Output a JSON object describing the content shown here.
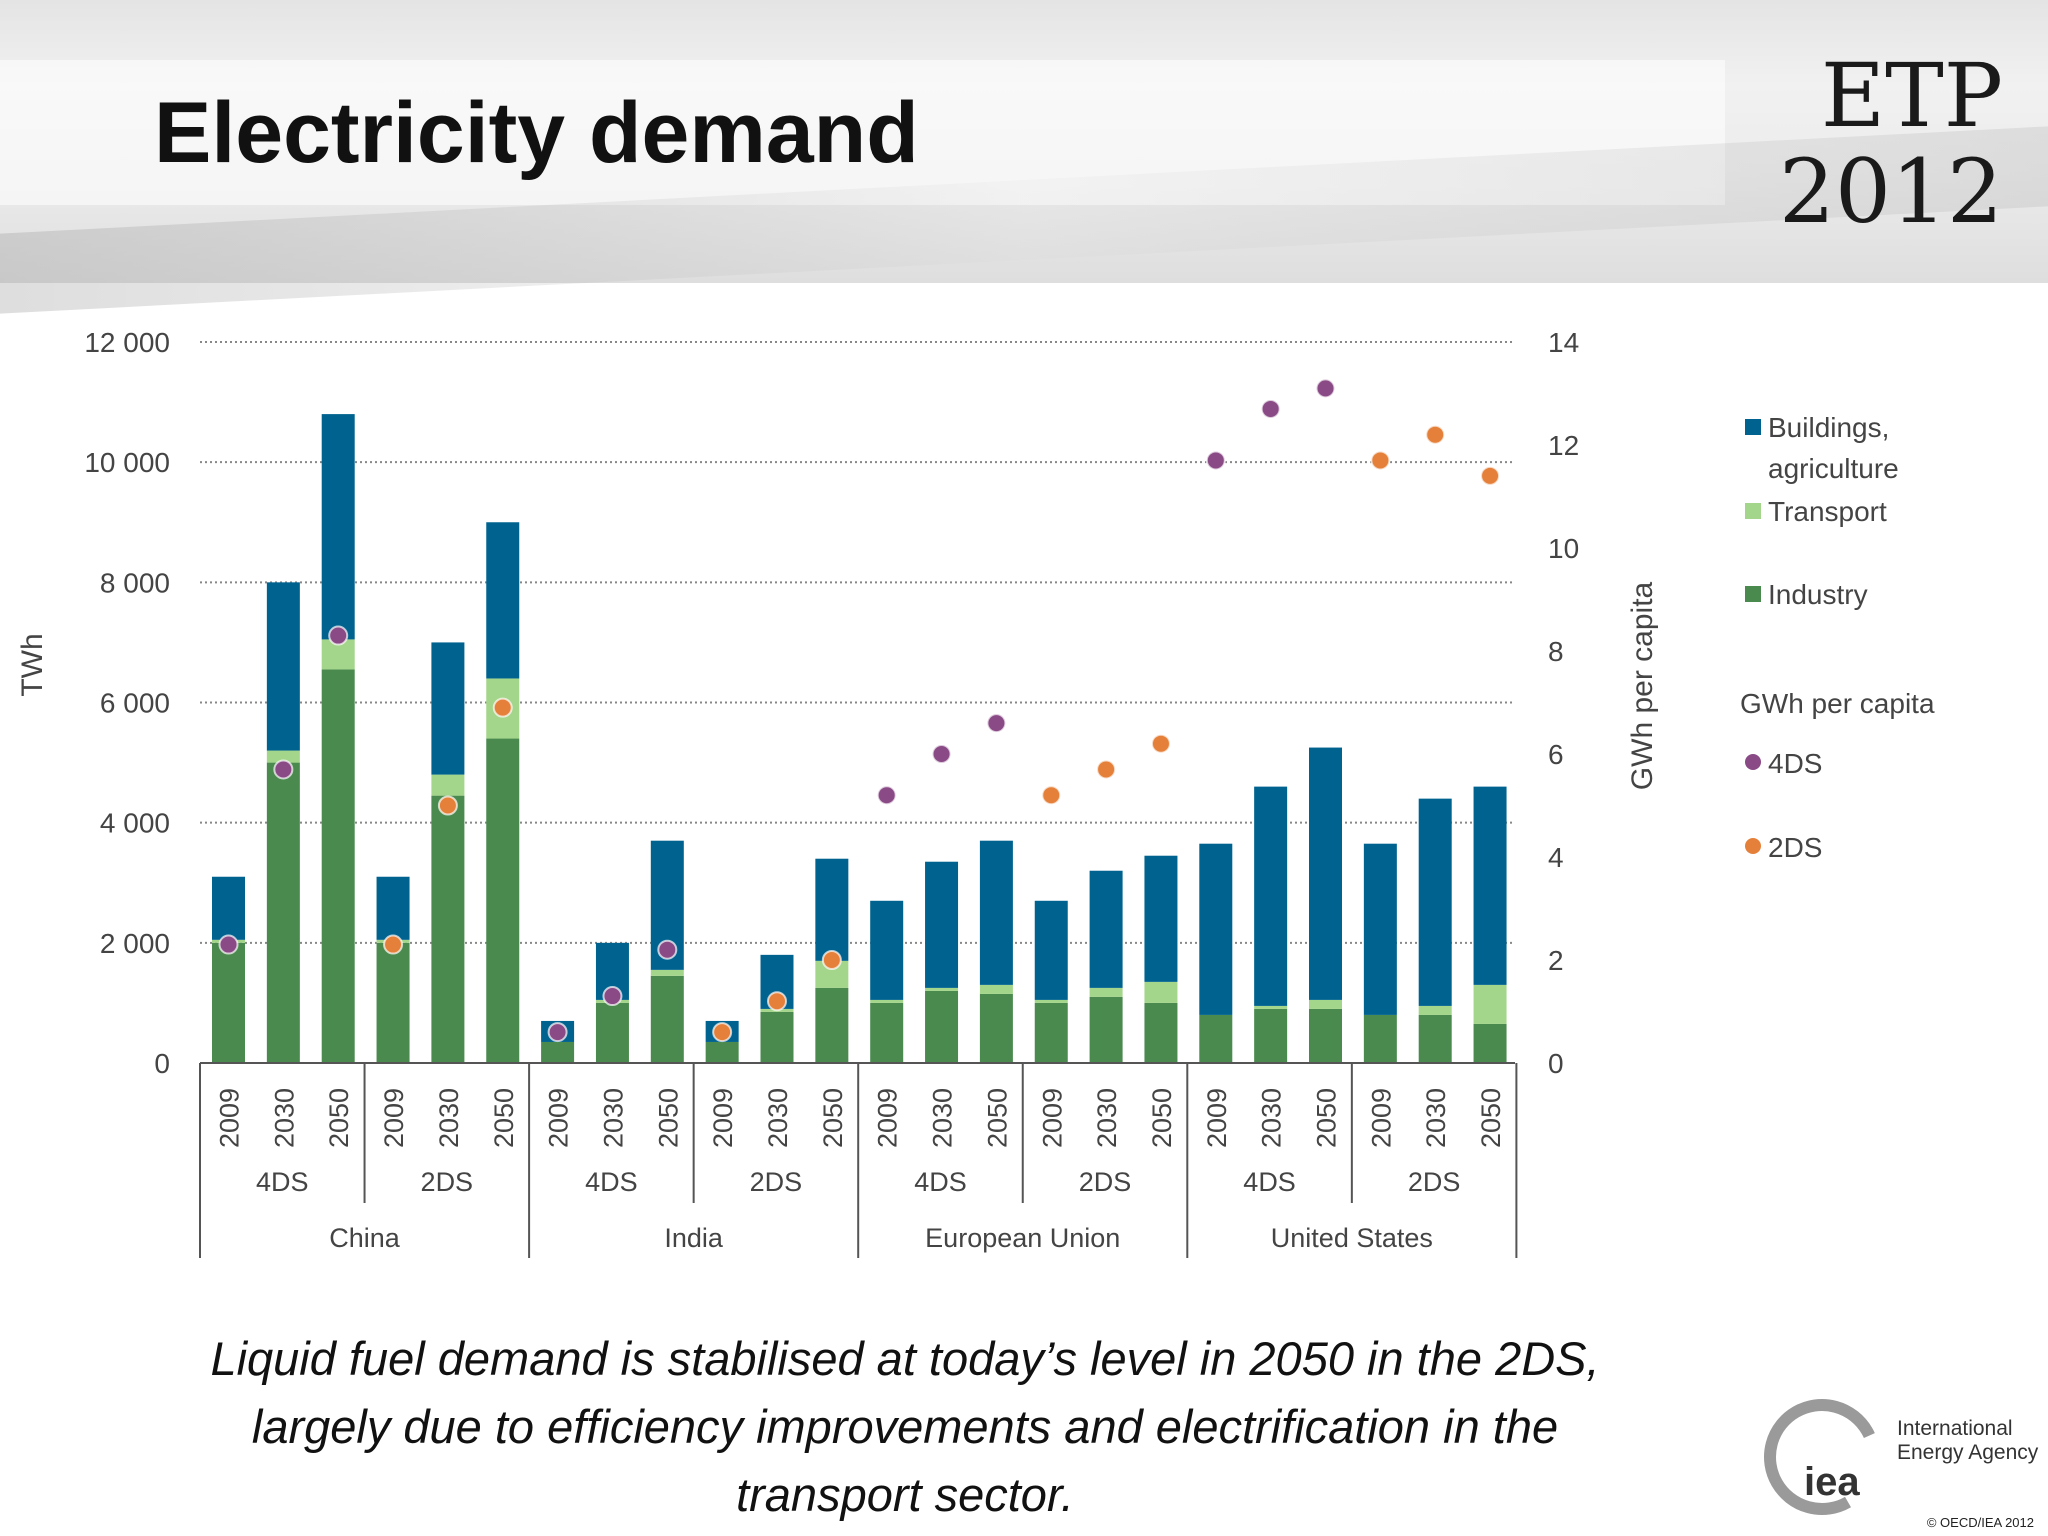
{
  "title": "Electricity demand",
  "logo_top": {
    "line1": "ETP",
    "line2": "2012"
  },
  "caption": {
    "line1": "Liquid fuel demand is stabilised at today’s level in 2050 in the 2DS,",
    "line2": "largely  due to efficiency improvements and electrification in the",
    "line3": "transport sector."
  },
  "iea_logo": {
    "mark": "iea",
    "line1": "International",
    "line2": "Energy Agency"
  },
  "copyright": "© OECD/IEA 2012",
  "colors": {
    "buildings": "#00638f",
    "transport": "#a3d58a",
    "industry": "#4a8a4e",
    "dot_4ds": "#8a4a86",
    "dot_2ds": "#e5803a"
  },
  "chart_data": {
    "type": "bar",
    "stacked": true,
    "ylabel": "TWh",
    "ylabel_right": "GWh per capita",
    "ylim": [
      0,
      12000
    ],
    "yticks": [
      "0",
      "2 000",
      "4 000",
      "6 000",
      "8 000",
      "10 000",
      "12 000"
    ],
    "ylim_right": [
      0,
      14
    ],
    "yticks_right": [
      "0",
      "2",
      "4",
      "6",
      "8",
      "10",
      "12",
      "14"
    ],
    "grid": true,
    "legend_placement": "right",
    "regions": [
      "China",
      "India",
      "European Union",
      "United States"
    ],
    "scenarios": [
      "4DS",
      "2DS",
      "4DS",
      "2DS",
      "4DS",
      "2DS",
      "4DS",
      "2DS"
    ],
    "categories": [
      "2009",
      "2030",
      "2050",
      "2009",
      "2030",
      "2050",
      "2009",
      "2030",
      "2050",
      "2009",
      "2030",
      "2050",
      "2009",
      "2030",
      "2050",
      "2009",
      "2030",
      "2050",
      "2009",
      "2030",
      "2050",
      "2009",
      "2030",
      "2050"
    ],
    "series": [
      {
        "name": "Industry",
        "values": [
          2000,
          5000,
          6550,
          2000,
          4450,
          5400,
          350,
          1000,
          1450,
          350,
          850,
          1250,
          1000,
          1200,
          1150,
          1000,
          1100,
          1000,
          800,
          900,
          900,
          800,
          800,
          650
        ]
      },
      {
        "name": "Transport",
        "values": [
          50,
          200,
          500,
          50,
          350,
          1000,
          0,
          50,
          100,
          0,
          50,
          450,
          50,
          50,
          150,
          50,
          150,
          350,
          0,
          50,
          150,
          0,
          150,
          650
        ]
      },
      {
        "name": "Buildings, agriculture",
        "values": [
          1050,
          2800,
          3750,
          1050,
          2200,
          2600,
          350,
          950,
          2150,
          350,
          900,
          1700,
          1650,
          2100,
          2400,
          1650,
          1950,
          2100,
          2850,
          3650,
          4200,
          2850,
          3450,
          3300
        ]
      }
    ],
    "per_capita_legend_title": "GWh per capita",
    "per_capita": [
      {
        "name": "4DS",
        "indices": [
          0,
          1,
          2,
          6,
          7,
          8,
          12,
          13,
          14,
          18,
          19,
          20
        ],
        "values": [
          2.3,
          5.7,
          8.3,
          0.6,
          1.3,
          2.2,
          5.2,
          6.0,
          6.6,
          11.7,
          12.7,
          13.1
        ]
      },
      {
        "name": "2DS",
        "indices": [
          3,
          4,
          5,
          9,
          10,
          11,
          15,
          16,
          17,
          21,
          22,
          23
        ],
        "values": [
          2.3,
          5.0,
          6.9,
          0.6,
          1.2,
          2.0,
          5.2,
          5.7,
          6.2,
          11.7,
          12.2,
          11.4
        ]
      }
    ],
    "legend": [
      "Buildings, agriculture",
      "Transport",
      "Industry",
      "GWh per capita",
      "4DS",
      "2DS"
    ]
  }
}
